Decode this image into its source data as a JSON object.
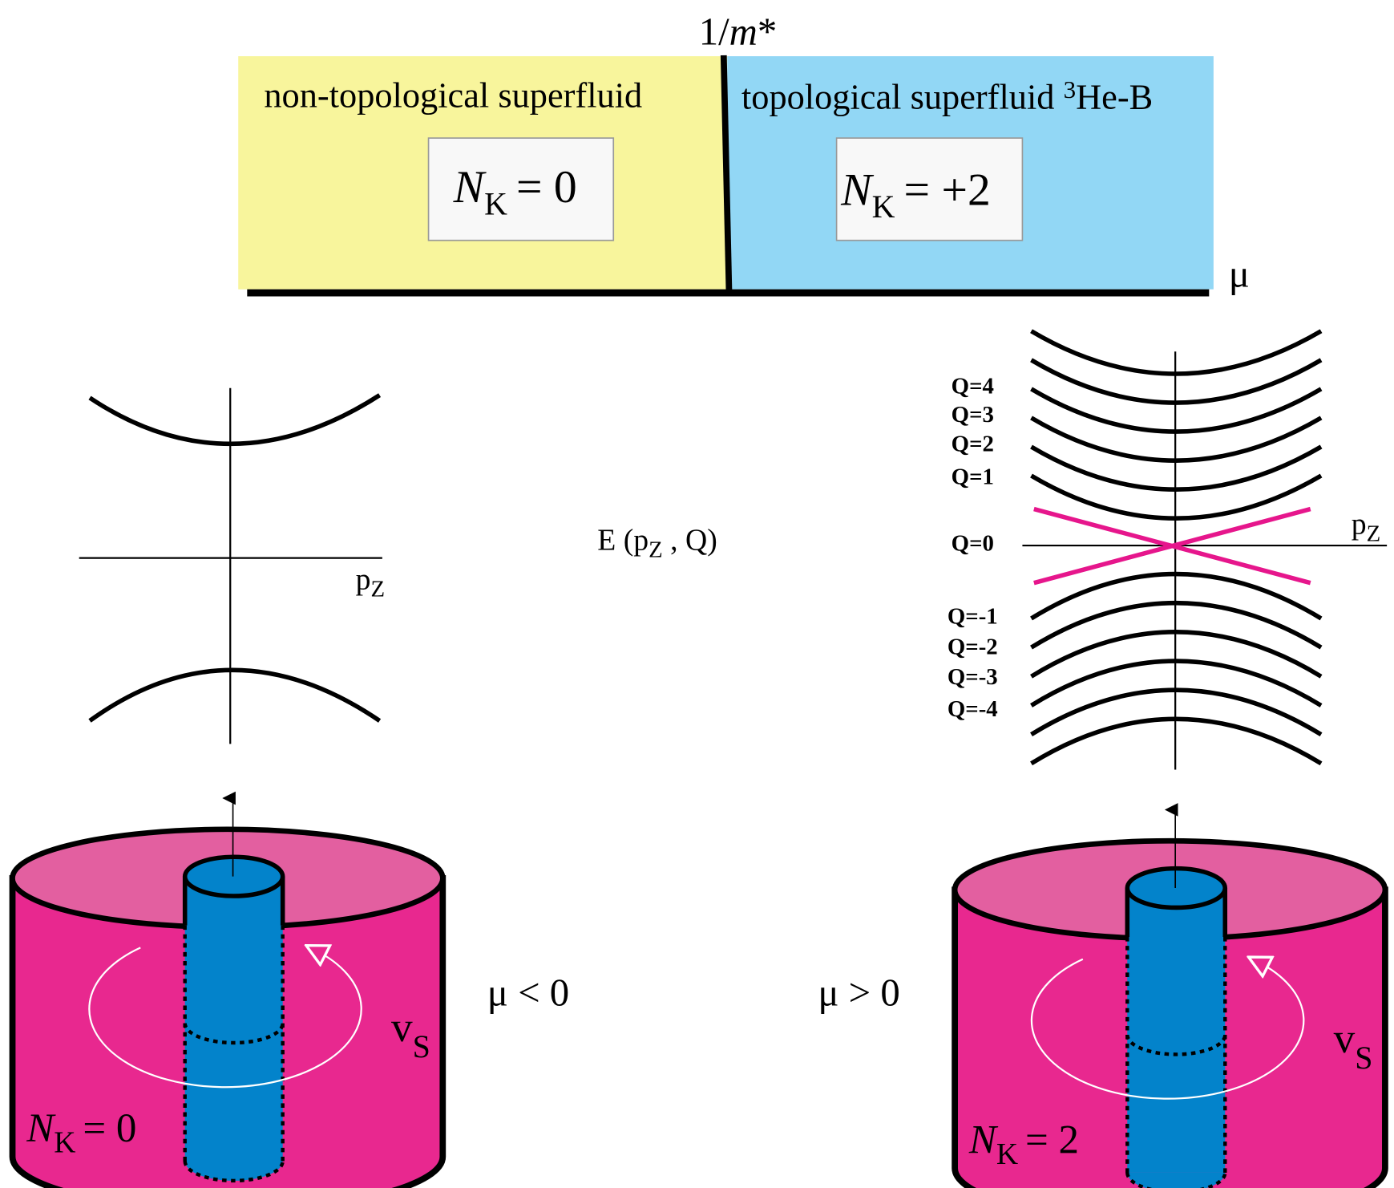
{
  "phase_diagram": {
    "vertical_axis": {
      "prefix": "1/",
      "variable": "m",
      "suffix": "*"
    },
    "horizontal_axis": "μ",
    "left_region": {
      "title": "non-topological superfluid",
      "invariant": {
        "symbol": "N",
        "subscript": "K",
        "relation": "= 0"
      }
    },
    "right_region": {
      "title": "topological superfluid",
      "superscript": "3",
      "title_end": "He-B",
      "invariant": {
        "symbol": "N",
        "subscript": "K",
        "relation": "= +2"
      }
    }
  },
  "spectrum_label": {
    "start": "E (p",
    "subscript": "Z",
    "end": " , Q)"
  },
  "left_spectrum": {
    "axis_label": "p",
    "axis_subscript": "Z"
  },
  "right_spectrum": {
    "axis_label": "p",
    "axis_subscript": "Z",
    "levels": [
      "Q=4",
      "Q=3",
      "Q=2",
      "Q=1",
      "Q=0",
      "Q=-1",
      "Q=-2",
      "Q=-3",
      "Q=-4"
    ]
  },
  "left_vortex": {
    "condition": "μ < 0",
    "velocity": "v",
    "velocity_subscript": "S",
    "invariant": {
      "symbol": "N",
      "subscript": "K",
      "relation": "= 0"
    }
  },
  "right_vortex": {
    "condition": "μ > 0",
    "velocity": "v",
    "velocity_subscript": "S",
    "invariant": {
      "symbol": "N",
      "subscript": "K",
      "relation": "= 2"
    }
  }
}
